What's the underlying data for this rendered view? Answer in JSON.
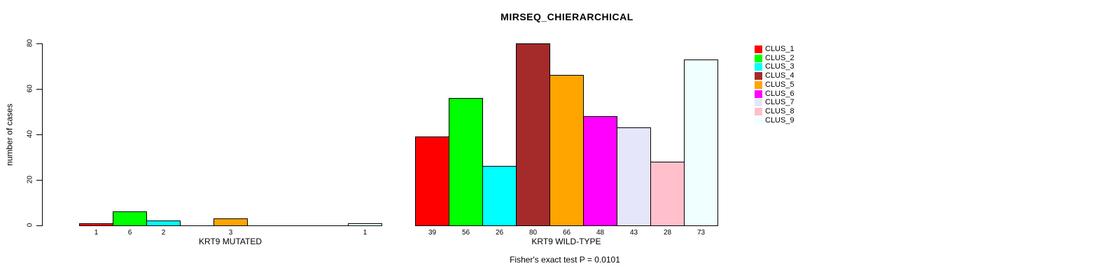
{
  "title": "MIRSEQ_CHIERARCHICAL",
  "chart_data": {
    "type": "bar",
    "title": "MIRSEQ_CHIERARCHICAL",
    "ylabel": "number of cases",
    "ylim": [
      0,
      80
    ],
    "yticks": [
      0,
      20,
      40,
      60,
      80
    ],
    "grid": false,
    "legend_position": "right",
    "bar_border_color": "#000000",
    "clusters": [
      {
        "name": "CLUS_1",
        "color": "#FF0000"
      },
      {
        "name": "CLUS_2",
        "color": "#00FF00"
      },
      {
        "name": "CLUS_3",
        "color": "#00FFFF"
      },
      {
        "name": "CLUS_4",
        "color": "#A52A2A"
      },
      {
        "name": "CLUS_5",
        "color": "#FFA500"
      },
      {
        "name": "CLUS_6",
        "color": "#FF00FF"
      },
      {
        "name": "CLUS_7",
        "color": "#E6E6FA"
      },
      {
        "name": "CLUS_8",
        "color": "#FFC0CB"
      },
      {
        "name": "CLUS_9",
        "color": "#F0FFFF"
      }
    ],
    "groups": [
      {
        "label": "KRT9 MUTATED",
        "values": [
          1,
          6,
          2,
          0,
          3,
          0,
          0,
          0,
          1
        ]
      },
      {
        "label": "KRT9 WILD-TYPE",
        "values": [
          39,
          56,
          26,
          80,
          66,
          48,
          43,
          28,
          73
        ]
      }
    ],
    "footnote": "Fisher's exact test P = 0.0101"
  }
}
